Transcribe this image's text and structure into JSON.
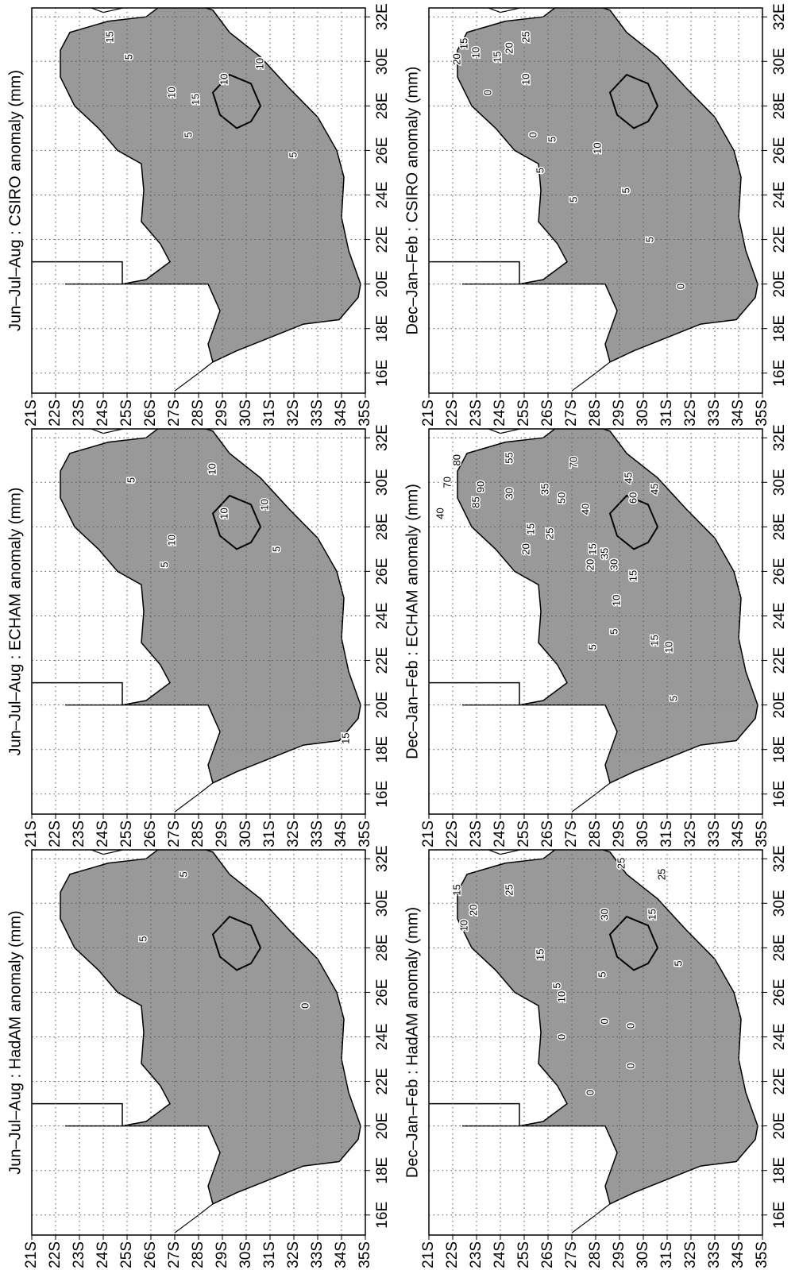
{
  "axes": {
    "xlim": [
      15.1,
      32.4
    ],
    "ylim": [
      -35,
      -21
    ],
    "xticks": [
      {
        "value": 16,
        "label": "16E"
      },
      {
        "value": 18,
        "label": "18E"
      },
      {
        "value": 20,
        "label": "20E"
      },
      {
        "value": 22,
        "label": "22E"
      },
      {
        "value": 24,
        "label": "24E"
      },
      {
        "value": 26,
        "label": "26E"
      },
      {
        "value": 28,
        "label": "28E"
      },
      {
        "value": 30,
        "label": "30E"
      },
      {
        "value": 32,
        "label": "32E"
      }
    ],
    "yticks": [
      {
        "value": -21,
        "label": "21S"
      },
      {
        "value": -22,
        "label": "22S"
      },
      {
        "value": -23,
        "label": "23S"
      },
      {
        "value": -24,
        "label": "24S"
      },
      {
        "value": -25,
        "label": "25S"
      },
      {
        "value": -26,
        "label": "26S"
      },
      {
        "value": -27,
        "label": "27S"
      },
      {
        "value": -28,
        "label": "28S"
      },
      {
        "value": -29,
        "label": "29S"
      },
      {
        "value": -30,
        "label": "30S"
      },
      {
        "value": -31,
        "label": "31S"
      },
      {
        "value": -32,
        "label": "32S"
      },
      {
        "value": -33,
        "label": "33S"
      },
      {
        "value": -34,
        "label": "34S"
      },
      {
        "value": -35,
        "label": "35S"
      }
    ],
    "grid": true
  },
  "panels": [
    {
      "title": "Jun–Jul–Aug : HadAM anomaly (mm)",
      "contour_labels": [
        {
          "level": 5,
          "lon": 28.4,
          "lat": -25.7
        },
        {
          "level": 5,
          "lon": 31.3,
          "lat": -27.4
        },
        {
          "level": 0,
          "lon": 25.4,
          "lat": -32.5
        }
      ]
    },
    {
      "title": "Jun–Jul–Aug : ECHAM anomaly (mm)",
      "contour_labels": [
        {
          "level": 5,
          "lon": 30.1,
          "lat": -25.2
        },
        {
          "level": 10,
          "lon": 27.4,
          "lat": -26.9
        },
        {
          "level": 10,
          "lon": 30.6,
          "lat": -28.6
        },
        {
          "level": 10,
          "lon": 28.6,
          "lat": -29.1
        },
        {
          "level": 10,
          "lon": 29.0,
          "lat": -30.8
        },
        {
          "level": 5,
          "lon": 27.0,
          "lat": -31.3
        },
        {
          "level": 5,
          "lon": 26.3,
          "lat": -26.6
        },
        {
          "level": 15,
          "lon": 18.5,
          "lat": -34.2
        }
      ]
    },
    {
      "title": "Jun–Jul–Aug : CSIRO anomaly (mm)",
      "contour_labels": [
        {
          "level": 5,
          "lon": 30.2,
          "lat": -25.1
        },
        {
          "level": 15,
          "lon": 31.1,
          "lat": -24.3
        },
        {
          "level": 10,
          "lon": 28.6,
          "lat": -26.9
        },
        {
          "level": 10,
          "lon": 29.2,
          "lat": -29.1
        },
        {
          "level": 15,
          "lon": 28.3,
          "lat": -27.9
        },
        {
          "level": 10,
          "lon": 29.9,
          "lat": -30.6
        },
        {
          "level": 5,
          "lon": 26.7,
          "lat": -27.6
        },
        {
          "level": 5,
          "lon": 25.8,
          "lat": -32.0
        }
      ]
    },
    {
      "title": "Dec–Jan–Feb : HadAM anomaly (mm)",
      "contour_labels": [
        {
          "level": 10,
          "lon": 29.0,
          "lat": -22.5
        },
        {
          "level": 15,
          "lon": 30.6,
          "lat": -22.2
        },
        {
          "level": 20,
          "lon": 29.7,
          "lat": -22.9
        },
        {
          "level": 25,
          "lon": 30.6,
          "lat": -24.4
        },
        {
          "level": 15,
          "lon": 27.7,
          "lat": -25.7
        },
        {
          "level": 10,
          "lon": 25.8,
          "lat": -26.6
        },
        {
          "level": 5,
          "lon": 26.3,
          "lat": -26.4
        },
        {
          "level": 0,
          "lon": 24.0,
          "lat": -26.6
        },
        {
          "level": 30,
          "lon": 29.5,
          "lat": -28.4
        },
        {
          "level": 25,
          "lon": 31.8,
          "lat": -29.1
        },
        {
          "level": 15,
          "lon": 29.5,
          "lat": -30.4
        },
        {
          "level": 25,
          "lon": 31.3,
          "lat": -30.8
        },
        {
          "level": 5,
          "lon": 27.3,
          "lat": -31.5
        },
        {
          "level": 0,
          "lon": 24.7,
          "lat": -28.4
        },
        {
          "level": 0,
          "lon": 24.5,
          "lat": -29.5
        },
        {
          "level": 0,
          "lon": 22.7,
          "lat": -29.5
        },
        {
          "level": 0,
          "lon": 21.5,
          "lat": -27.8
        },
        {
          "level": 5,
          "lon": 26.8,
          "lat": -28.3
        }
      ]
    },
    {
      "title": "Dec–Jan–Feb : ECHAM anomaly (mm)",
      "contour_labels": [
        {
          "level": 40,
          "lon": 28.6,
          "lat": -21.5
        },
        {
          "level": 70,
          "lon": 30.0,
          "lat": -21.8
        },
        {
          "level": 80,
          "lon": 31.0,
          "lat": -22.2
        },
        {
          "level": 85,
          "lon": 29.1,
          "lat": -23.0
        },
        {
          "level": 90,
          "lon": 29.8,
          "lat": -23.2
        },
        {
          "level": 30,
          "lon": 29.5,
          "lat": -24.4
        },
        {
          "level": 55,
          "lon": 31.1,
          "lat": -24.4
        },
        {
          "level": 20,
          "lon": 27.0,
          "lat": -25.1
        },
        {
          "level": 15,
          "lon": 27.9,
          "lat": -25.3
        },
        {
          "level": 25,
          "lon": 27.7,
          "lat": -26.1
        },
        {
          "level": 35,
          "lon": 29.7,
          "lat": -25.9
        },
        {
          "level": 50,
          "lon": 29.3,
          "lat": -26.6
        },
        {
          "level": 70,
          "lon": 30.9,
          "lat": -27.1
        },
        {
          "level": 40,
          "lon": 28.8,
          "lat": -27.6
        },
        {
          "level": 20,
          "lon": 26.3,
          "lat": -27.8
        },
        {
          "level": 15,
          "lon": 27.0,
          "lat": -27.9
        },
        {
          "level": 35,
          "lon": 26.8,
          "lat": -28.4
        },
        {
          "level": 30,
          "lon": 26.3,
          "lat": -28.8
        },
        {
          "level": 60,
          "lon": 29.3,
          "lat": -29.6
        },
        {
          "level": 45,
          "lon": 30.2,
          "lat": -29.4
        },
        {
          "level": 45,
          "lon": 29.7,
          "lat": -30.5
        },
        {
          "level": 10,
          "lon": 24.7,
          "lat": -28.9
        },
        {
          "level": 15,
          "lon": 25.8,
          "lat": -29.6
        },
        {
          "level": 5,
          "lon": 23.3,
          "lat": -28.8
        },
        {
          "level": 5,
          "lon": 22.6,
          "lat": -27.9
        },
        {
          "level": 15,
          "lon": 22.9,
          "lat": -30.5
        },
        {
          "level": 10,
          "lon": 22.6,
          "lat": -31.1
        },
        {
          "level": 5,
          "lon": 20.3,
          "lat": -31.3
        }
      ]
    },
    {
      "title": "Dec–Jan–Feb : CSIRO anomaly (mm)",
      "contour_labels": [
        {
          "level": 15,
          "lon": 30.8,
          "lat": -22.5
        },
        {
          "level": 20,
          "lon": 30.1,
          "lat": -22.2
        },
        {
          "level": 10,
          "lon": 30.4,
          "lat": -23.0
        },
        {
          "level": 15,
          "lon": 30.2,
          "lat": -23.9
        },
        {
          "level": 0,
          "lon": 28.6,
          "lat": -23.5
        },
        {
          "level": 0,
          "lon": 26.7,
          "lat": -25.4
        },
        {
          "level": 5,
          "lon": 26.5,
          "lat": -26.2
        },
        {
          "level": 5,
          "lon": 25.1,
          "lat": -25.7
        },
        {
          "level": 5,
          "lon": 23.8,
          "lat": -27.1
        },
        {
          "level": 10,
          "lon": 29.2,
          "lat": -25.1
        },
        {
          "level": 20,
          "lon": 30.6,
          "lat": -24.4
        },
        {
          "level": 25,
          "lon": 31.1,
          "lat": -25.1
        },
        {
          "level": 10,
          "lon": 26.1,
          "lat": -28.1
        },
        {
          "level": 5,
          "lon": 24.2,
          "lat": -29.3
        },
        {
          "level": 5,
          "lon": 22.0,
          "lat": -30.3
        },
        {
          "level": 0,
          "lon": 19.9,
          "lat": -31.6
        }
      ]
    }
  ]
}
